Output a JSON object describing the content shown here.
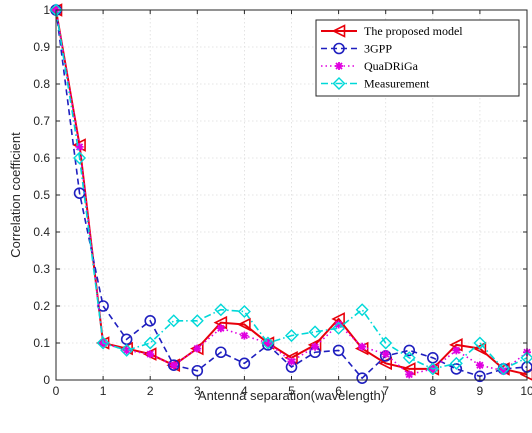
{
  "chart_data": {
    "type": "line",
    "xlabel": "Antenna separation(wavelength)",
    "ylabel": "Correlation coefficient",
    "xlim": [
      0,
      10
    ],
    "ylim": [
      0,
      1
    ],
    "x_ticks": [
      0,
      1,
      2,
      3,
      4,
      5,
      6,
      7,
      8,
      9,
      10
    ],
    "y_ticks": [
      0,
      0.1,
      0.2,
      0.3,
      0.4,
      0.5,
      0.6,
      0.7,
      0.8,
      0.9,
      1
    ],
    "x_tick_labels": [
      "0",
      "1",
      "2",
      "3",
      "4",
      "5",
      "6",
      "7",
      "8",
      "9",
      "10"
    ],
    "y_tick_labels": [
      "0",
      "0.1",
      "0.2",
      "0.3",
      "0.4",
      "0.5",
      "0.6",
      "0.7",
      "0.8",
      "0.9",
      "1"
    ],
    "grid": true,
    "legend_position": "top-right",
    "series": [
      {
        "name": "The proposed model",
        "color": "#e8000b",
        "line_style": "solid",
        "marker": "triangle-left",
        "x": [
          0,
          0.5,
          1,
          1.5,
          2,
          2.5,
          3,
          3.5,
          4,
          4.5,
          5,
          5.5,
          6,
          6.5,
          7,
          7.5,
          8,
          8.5,
          9,
          9.5,
          10
        ],
        "y": [
          1,
          0.635,
          0.1,
          0.085,
          0.07,
          0.04,
          0.085,
          0.155,
          0.15,
          0.1,
          0.06,
          0.095,
          0.165,
          0.085,
          0.045,
          0.03,
          0.03,
          0.095,
          0.085,
          0.03,
          0.015
        ]
      },
      {
        "name": "3GPP",
        "color": "#1f1fbf",
        "line_style": "dashed",
        "marker": "circle",
        "x": [
          0,
          0.5,
          1,
          1.5,
          2,
          2.5,
          3,
          3.5,
          4,
          4.5,
          5,
          5.5,
          6,
          6.5,
          7,
          7.5,
          8,
          8.5,
          9,
          9.5,
          10
        ],
        "y": [
          1,
          0.505,
          0.2,
          0.11,
          0.16,
          0.04,
          0.025,
          0.075,
          0.045,
          0.095,
          0.035,
          0.075,
          0.08,
          0.005,
          0.065,
          0.08,
          0.06,
          0.03,
          0.01,
          0.03,
          0.035
        ]
      },
      {
        "name": "QuaDRiGa",
        "color": "#e000e0",
        "line_style": "dotted",
        "marker": "asterisk",
        "x": [
          0,
          0.5,
          1,
          1.5,
          2,
          2.5,
          3,
          3.5,
          4,
          4.5,
          5,
          5.5,
          6,
          6.5,
          7,
          7.5,
          8,
          8.5,
          9,
          9.5,
          10
        ],
        "y": [
          1,
          0.63,
          0.1,
          0.08,
          0.07,
          0.04,
          0.085,
          0.14,
          0.12,
          0.1,
          0.05,
          0.09,
          0.15,
          0.09,
          0.07,
          0.015,
          0.03,
          0.08,
          0.04,
          0.025,
          0.075
        ]
      },
      {
        "name": "Measurement",
        "color": "#00d8d8",
        "line_style": "dashdot",
        "marker": "diamond",
        "x": [
          0,
          0.5,
          1,
          1.5,
          2,
          2.5,
          3,
          3.5,
          4,
          4.5,
          5,
          5.5,
          6,
          6.5,
          7,
          7.5,
          8,
          8.5,
          9,
          9.5,
          10
        ],
        "y": [
          1,
          0.6,
          0.1,
          0.08,
          0.1,
          0.16,
          0.16,
          0.19,
          0.185,
          0.1,
          0.12,
          0.13,
          0.14,
          0.19,
          0.1,
          0.06,
          0.03,
          0.045,
          0.1,
          0.03,
          0.06
        ]
      }
    ]
  }
}
